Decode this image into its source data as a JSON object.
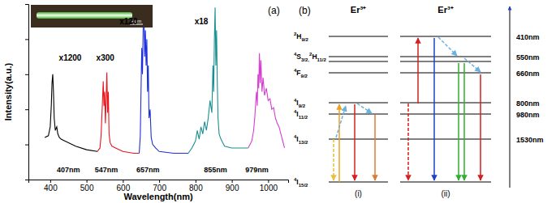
{
  "chart_data": {
    "type": "line",
    "panel_label": "(a)",
    "inset_scale_label": "4μm",
    "xlabel": "Wavelength(nm)",
    "ylabel": "Intensity(a.u.)",
    "xlim": [
      340,
      1055
    ],
    "ylim": [
      0,
      10
    ],
    "xticks": [
      400,
      500,
      600,
      700,
      800,
      900,
      1000
    ],
    "yticks": [
      0,
      2,
      4,
      6,
      8,
      10
    ],
    "tick_labels": "x",
    "grid": false,
    "annotations": [
      "x1200",
      "x300",
      "x120",
      "x18",
      "407nm",
      "547nm",
      "657nm",
      "855nm",
      "979nm"
    ],
    "series": [
      {
        "color": "#000000",
        "x": [
          385,
          395,
          400,
          403,
          405,
          407,
          409,
          411,
          414,
          418,
          421,
          425,
          430,
          440,
          470,
          500,
          530
        ],
        "values": [
          2.4,
          2.5,
          3.0,
          4.2,
          5.5,
          6.0,
          5.0,
          3.5,
          2.8,
          3.0,
          2.6,
          2.4,
          2.3,
          2.2,
          1.9,
          1.7,
          1.6
        ]
      },
      {
        "color": "#e8141c",
        "x": [
          530,
          537,
          540,
          543,
          546,
          548,
          550,
          552,
          554,
          556,
          558,
          560,
          562,
          565,
          570,
          580,
          600,
          630,
          645
        ],
        "values": [
          1.6,
          1.8,
          2.5,
          4.0,
          5.6,
          4.2,
          5.0,
          3.2,
          4.6,
          6.1,
          3.8,
          5.0,
          2.6,
          2.1,
          1.9,
          1.8,
          1.6,
          1.5,
          1.5
        ]
      },
      {
        "color": "#1d2fd6",
        "x": [
          645,
          648,
          650,
          652,
          654,
          656,
          658,
          660,
          662,
          664,
          666,
          668,
          670,
          672,
          675,
          678,
          682,
          690,
          700,
          740,
          780
        ],
        "values": [
          1.5,
          2.5,
          5.0,
          7.5,
          6.0,
          8.8,
          9.8,
          7.0,
          8.5,
          6.5,
          8.0,
          5.0,
          6.5,
          3.5,
          4.0,
          2.4,
          2.0,
          1.8,
          1.6,
          1.5,
          1.5
        ]
      },
      {
        "color": "#1a8f8f",
        "x": [
          780,
          790,
          800,
          805,
          810,
          815,
          820,
          825,
          830,
          835,
          840,
          845,
          848,
          850,
          852,
          854,
          856,
          858,
          860,
          862,
          865,
          870,
          875,
          880,
          900,
          945
        ],
        "values": [
          1.5,
          1.8,
          2.2,
          2.8,
          2.3,
          3.0,
          2.6,
          3.3,
          2.8,
          3.5,
          4.5,
          3.8,
          6.5,
          5.0,
          8.0,
          9.8,
          6.5,
          8.5,
          5.5,
          3.5,
          2.6,
          2.3,
          2.1,
          1.9,
          1.8,
          1.8
        ]
      },
      {
        "color": "#d63fd0",
        "x": [
          945,
          955,
          960,
          963,
          966,
          968,
          970,
          972,
          974,
          976,
          978,
          980,
          983,
          986,
          990,
          995,
          1000,
          1005,
          1010,
          1015,
          1020,
          1025,
          1030,
          1035,
          1040,
          1045
        ],
        "values": [
          1.8,
          2.2,
          2.8,
          3.5,
          4.5,
          5.0,
          4.2,
          6.0,
          5.2,
          7.2,
          5.5,
          6.8,
          5.0,
          5.8,
          4.8,
          5.2,
          4.5,
          4.6,
          4.0,
          4.1,
          3.5,
          3.2,
          3.0,
          2.6,
          2.2,
          1.8
        ]
      }
    ]
  },
  "diagram": {
    "panel_label": "(b)",
    "columns": [
      {
        "header": "Er³⁺",
        "label": "(i)"
      },
      {
        "header": "Er³⁺",
        "label": "(ii)"
      }
    ],
    "levels": [
      {
        "terms": [
          [
            "2",
            "H",
            "9/2"
          ]
        ],
        "wavelength": "410nm"
      },
      {
        "terms": [
          [
            "4",
            "S",
            "3/2,"
          ],
          [
            "2",
            "H",
            "11/2"
          ]
        ],
        "wavelength": "550nm"
      },
      {
        "terms": [
          [
            "4",
            "F",
            "9/2"
          ]
        ],
        "wavelength": "660nm"
      },
      {
        "terms": [
          [
            "4",
            "I",
            "9/2"
          ]
        ],
        "wavelength": "800nm"
      },
      {
        "terms": [
          [
            "4",
            "I",
            "11/2"
          ]
        ],
        "wavelength": "980nm"
      },
      {
        "terms": [
          [
            "4",
            "I",
            "13/2"
          ]
        ],
        "wavelength": "1530nm"
      },
      {
        "terms": [
          [
            "4",
            "I",
            "15/2"
          ]
        ]
      }
    ]
  }
}
